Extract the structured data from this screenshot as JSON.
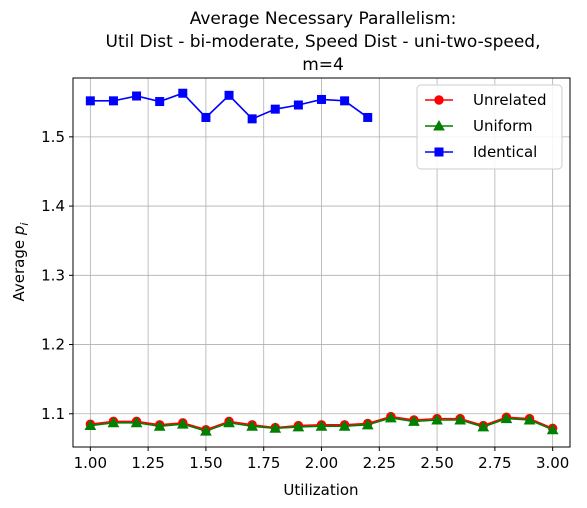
{
  "chart_data": {
    "type": "line",
    "title_lines": [
      "Average Necessary Parallelism:",
      "Util Dist - bi-moderate, Speed Dist - uni-two-speed,",
      "m=4"
    ],
    "xlabel": "Utilization",
    "ylabel_main": "Average ",
    "ylabel_sym": "p",
    "ylabel_sub": "i",
    "xlim": [
      0.925,
      3.075
    ],
    "ylim": [
      1.052,
      1.585
    ],
    "xticks": [
      "1.00",
      "1.25",
      "1.50",
      "1.75",
      "2.00",
      "2.25",
      "2.50",
      "2.75",
      "3.00"
    ],
    "yticks": [
      "1.1",
      "1.2",
      "1.3",
      "1.4",
      "1.5"
    ],
    "grid": true,
    "legend_position": "top-right",
    "series": [
      {
        "name": "Unrelated",
        "color": "#ff0000",
        "marker": "circle",
        "x": [
          1.0,
          1.1,
          1.2,
          1.3,
          1.4,
          1.5,
          1.6,
          1.7,
          1.8,
          1.9,
          2.0,
          2.1,
          2.2,
          2.3,
          2.4,
          2.5,
          2.6,
          2.7,
          2.8,
          2.9,
          3.0
        ],
        "y": [
          1.085,
          1.089,
          1.089,
          1.084,
          1.087,
          1.077,
          1.089,
          1.084,
          1.08,
          1.083,
          1.084,
          1.084,
          1.086,
          1.096,
          1.091,
          1.093,
          1.093,
          1.083,
          1.095,
          1.093,
          1.079
        ]
      },
      {
        "name": "Uniform",
        "color": "#008000",
        "marker": "triangle",
        "x": [
          1.0,
          1.1,
          1.2,
          1.3,
          1.4,
          1.5,
          1.6,
          1.7,
          1.8,
          1.9,
          2.0,
          2.1,
          2.2,
          2.3,
          2.4,
          2.5,
          2.6,
          2.7,
          2.8,
          2.9,
          3.0
        ],
        "y": [
          1.083,
          1.087,
          1.087,
          1.082,
          1.085,
          1.075,
          1.087,
          1.082,
          1.079,
          1.081,
          1.082,
          1.082,
          1.084,
          1.094,
          1.089,
          1.091,
          1.091,
          1.081,
          1.093,
          1.091,
          1.077
        ]
      },
      {
        "name": "Identical",
        "color": "#0000ff",
        "marker": "square",
        "x": [
          1.0,
          1.1,
          1.2,
          1.3,
          1.4,
          1.5,
          1.6,
          1.7,
          1.8,
          1.9,
          2.0,
          2.1,
          2.2
        ],
        "y": [
          1.552,
          1.552,
          1.559,
          1.551,
          1.563,
          1.528,
          1.56,
          1.526,
          1.54,
          1.546,
          1.554,
          1.552,
          1.528
        ]
      }
    ]
  }
}
